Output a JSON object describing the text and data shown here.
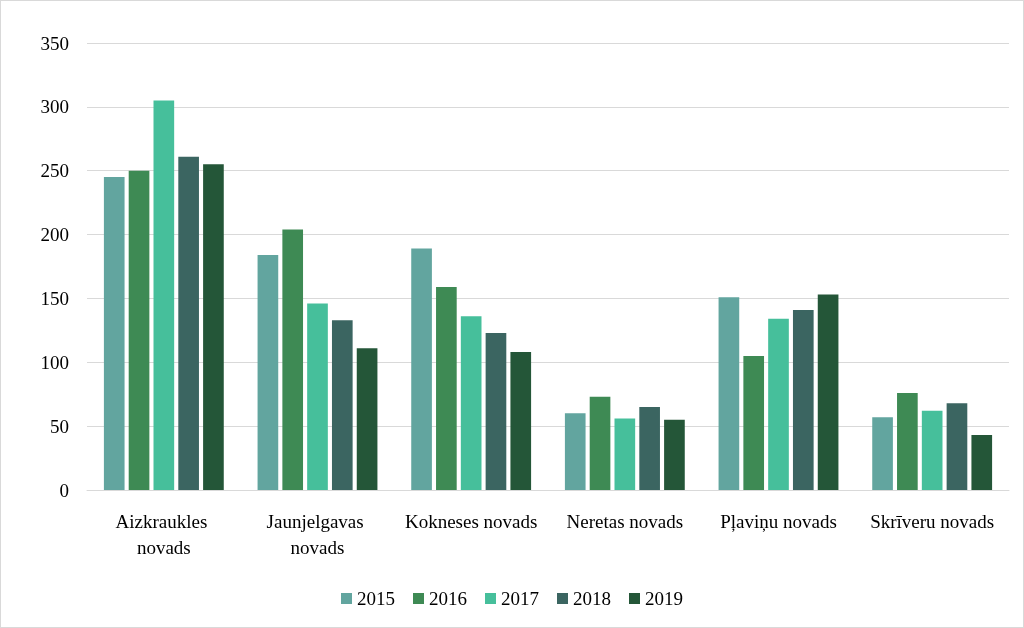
{
  "chart_data": {
    "type": "bar",
    "categories": [
      "Aizkraukles novads",
      "Jaunjelgavas novads",
      "Kokneses novads",
      "Neretas novads",
      "Pļaviņu novads",
      "Skrīveru novads"
    ],
    "series": [
      {
        "name": "2015",
        "color": "#62a59f",
        "values": [
          245,
          184,
          189,
          60,
          151,
          57
        ]
      },
      {
        "name": "2016",
        "color": "#3e8a54",
        "values": [
          250,
          204,
          159,
          73,
          105,
          76
        ]
      },
      {
        "name": "2017",
        "color": "#46bf9b",
        "values": [
          305,
          146,
          136,
          56,
          134,
          62
        ]
      },
      {
        "name": "2018",
        "color": "#3b6561",
        "values": [
          261,
          133,
          123,
          65,
          141,
          68
        ]
      },
      {
        "name": "2019",
        "color": "#245638",
        "values": [
          255,
          111,
          108,
          55,
          153,
          43
        ]
      }
    ],
    "ylim": [
      0,
      350
    ],
    "yticks": [
      0,
      50,
      100,
      150,
      200,
      250,
      300,
      350
    ],
    "grid": "y",
    "legend": "bottom"
  }
}
